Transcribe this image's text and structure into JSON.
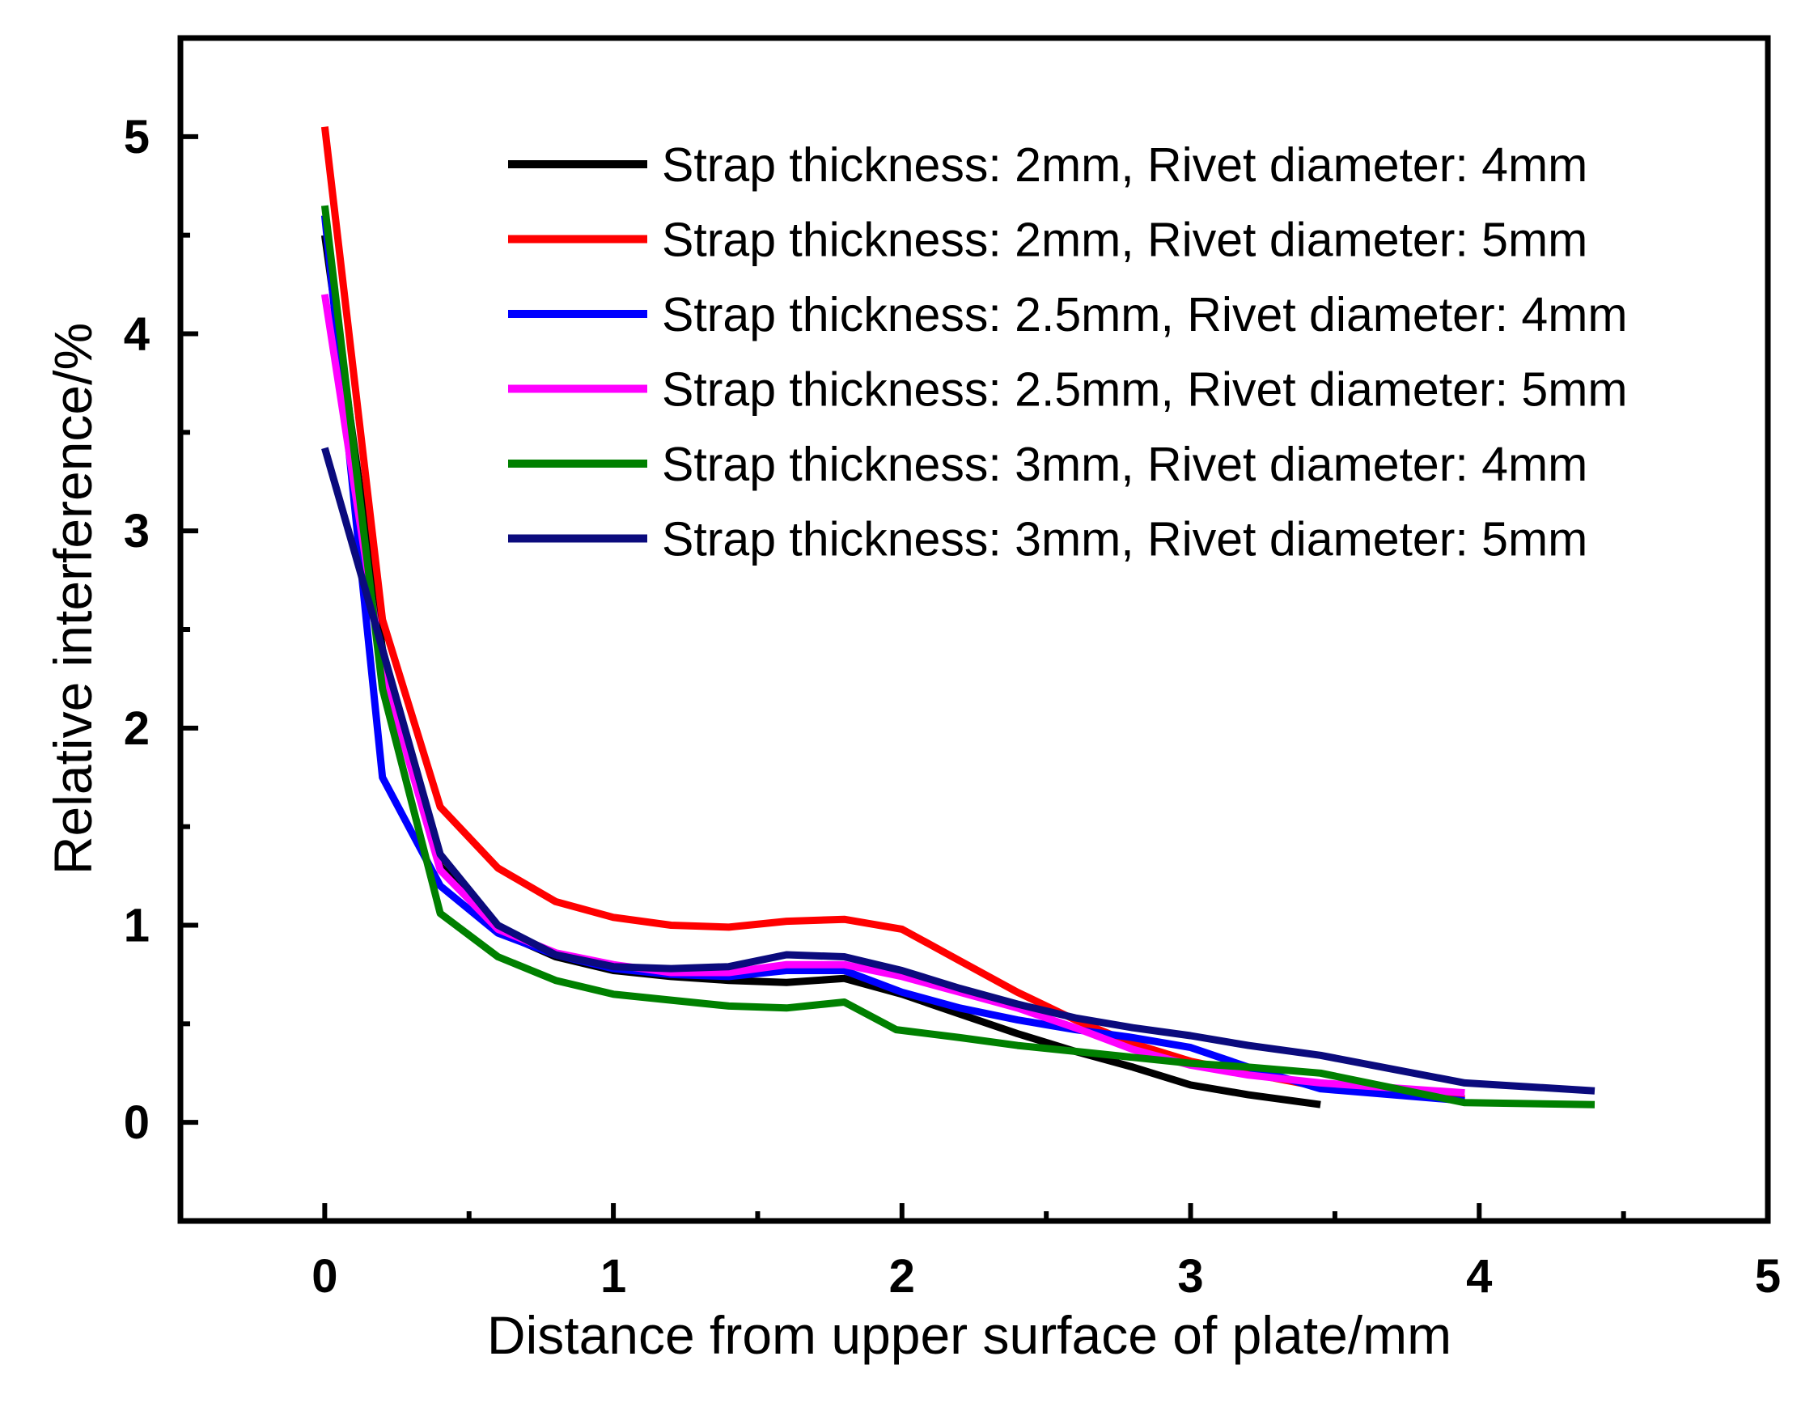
{
  "chart_data": {
    "type": "line",
    "title": "",
    "xlabel": "Distance from upper surface of plate/mm",
    "ylabel": "Relative interference/%",
    "xlim": [
      -0.5,
      5
    ],
    "ylim": [
      -0.5,
      5.5
    ],
    "xticks": [
      0,
      1,
      2,
      3,
      4,
      5
    ],
    "yticks": [
      0,
      1,
      2,
      3,
      4,
      5
    ],
    "xticks_minor": [
      0.5,
      1.5,
      2.5,
      3.5,
      4.5
    ],
    "yticks_minor": [
      0.5,
      1.5,
      2.5,
      3.5,
      4.5
    ],
    "grid": false,
    "legend_position": "top-right",
    "series": [
      {
        "name": "Strap thickness: 2mm, Rivet diameter: 4mm",
        "color": "#000000",
        "x": [
          0,
          0.2,
          0.4,
          0.6,
          0.8,
          1.0,
          1.2,
          1.4,
          1.6,
          1.8,
          2.0,
          2.2,
          2.4,
          2.6,
          2.8,
          3.0,
          3.2,
          3.45
        ],
        "y": [
          4.5,
          2.4,
          1.3,
          0.97,
          0.84,
          0.77,
          0.74,
          0.72,
          0.71,
          0.73,
          0.65,
          0.55,
          0.45,
          0.36,
          0.28,
          0.19,
          0.14,
          0.09
        ]
      },
      {
        "name": "Strap thickness: 2mm, Rivet diameter: 5mm",
        "color": "#ff0000",
        "x": [
          0,
          0.2,
          0.4,
          0.6,
          0.8,
          1.0,
          1.2,
          1.4,
          1.6,
          1.8,
          2.0,
          2.2,
          2.4,
          2.6,
          2.8,
          3.0,
          3.2,
          3.45,
          3.95
        ],
        "y": [
          5.05,
          2.55,
          1.6,
          1.29,
          1.12,
          1.04,
          1.0,
          0.99,
          1.02,
          1.03,
          0.98,
          0.82,
          0.66,
          0.52,
          0.4,
          0.31,
          0.25,
          0.18,
          0.12
        ]
      },
      {
        "name": "Strap thickness: 2.5mm, Rivet diameter: 4mm",
        "color": "#0000ff",
        "x": [
          0,
          0.2,
          0.4,
          0.6,
          0.8,
          1.0,
          1.2,
          1.4,
          1.6,
          1.8,
          2.0,
          2.2,
          2.4,
          2.6,
          2.8,
          3.0,
          3.2,
          3.45,
          3.95
        ],
        "y": [
          4.6,
          1.75,
          1.2,
          0.96,
          0.85,
          0.78,
          0.75,
          0.74,
          0.77,
          0.77,
          0.66,
          0.58,
          0.52,
          0.47,
          0.43,
          0.38,
          0.28,
          0.17,
          0.11
        ]
      },
      {
        "name": "Strap thickness: 2.5mm, Rivet diameter: 5mm",
        "color": "#ff00ff",
        "x": [
          0,
          0.2,
          0.4,
          0.6,
          0.8,
          1.0,
          1.2,
          1.4,
          1.6,
          1.8,
          2.0,
          2.2,
          2.4,
          2.6,
          2.8,
          3.0,
          3.2,
          3.45,
          3.95
        ],
        "y": [
          4.2,
          2.3,
          1.28,
          0.98,
          0.86,
          0.8,
          0.76,
          0.76,
          0.8,
          0.8,
          0.74,
          0.66,
          0.58,
          0.48,
          0.37,
          0.29,
          0.24,
          0.2,
          0.15
        ]
      },
      {
        "name": "Strap thickness: 3mm, Rivet diameter: 4mm",
        "color": "#008000",
        "x": [
          0,
          0.2,
          0.4,
          0.6,
          0.8,
          1.0,
          1.2,
          1.4,
          1.6,
          1.8,
          1.98,
          2.2,
          2.4,
          2.6,
          2.8,
          3.0,
          3.2,
          3.45,
          3.95,
          4.4
        ],
        "y": [
          4.65,
          2.2,
          1.06,
          0.84,
          0.72,
          0.65,
          0.62,
          0.59,
          0.58,
          0.61,
          0.47,
          0.43,
          0.39,
          0.36,
          0.33,
          0.3,
          0.28,
          0.25,
          0.1,
          0.09
        ]
      },
      {
        "name": "Strap thickness: 3mm, Rivet diameter: 5mm",
        "color": "#0b0b7d",
        "x": [
          0,
          0.2,
          0.4,
          0.6,
          0.8,
          1.0,
          1.2,
          1.4,
          1.6,
          1.8,
          2.0,
          2.2,
          2.4,
          2.6,
          2.8,
          3.0,
          3.2,
          3.45,
          3.95,
          4.4
        ],
        "y": [
          3.42,
          2.4,
          1.36,
          1.0,
          0.85,
          0.79,
          0.78,
          0.79,
          0.85,
          0.84,
          0.77,
          0.68,
          0.6,
          0.53,
          0.48,
          0.44,
          0.39,
          0.34,
          0.2,
          0.16
        ]
      }
    ]
  }
}
